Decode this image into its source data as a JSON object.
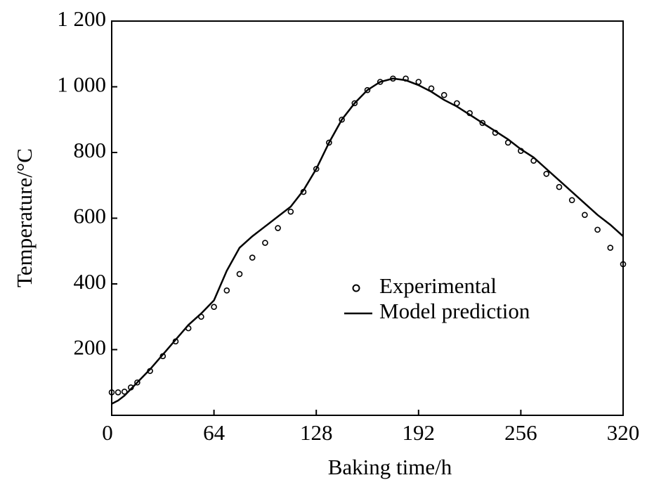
{
  "chart_data": {
    "type": "line",
    "x_label": "Baking time/h",
    "y_label": "Temperature/°C",
    "x": [
      0,
      4,
      8,
      12,
      16,
      24,
      32,
      40,
      48,
      56,
      64,
      72,
      80,
      88,
      96,
      104,
      112,
      120,
      128,
      136,
      144,
      152,
      160,
      168,
      176,
      184,
      192,
      200,
      208,
      216,
      224,
      232,
      240,
      248,
      256,
      264,
      272,
      280,
      288,
      296,
      304,
      312,
      320
    ],
    "series": [
      {
        "name": "Experimental",
        "color": "#000000",
        "mode": "markers",
        "values": [
          70,
          70,
          72,
          85,
          100,
          135,
          180,
          225,
          265,
          300,
          330,
          380,
          430,
          480,
          525,
          570,
          620,
          680,
          750,
          830,
          900,
          950,
          990,
          1015,
          1025,
          1025,
          1015,
          995,
          975,
          950,
          920,
          890,
          860,
          830,
          805,
          775,
          735,
          695,
          655,
          610,
          565,
          510,
          460
        ]
      },
      {
        "name": "Model prediction",
        "color": "#000000",
        "mode": "line",
        "values": [
          35,
          45,
          60,
          80,
          100,
          140,
          185,
          230,
          275,
          310,
          350,
          440,
          510,
          545,
          575,
          605,
          635,
          685,
          750,
          830,
          900,
          950,
          990,
          1015,
          1025,
          1020,
          1005,
          985,
          960,
          940,
          915,
          890,
          865,
          840,
          810,
          785,
          750,
          715,
          680,
          645,
          610,
          580,
          545
        ]
      }
    ],
    "xlim": [
      0,
      320
    ],
    "xticks": [
      0,
      64,
      128,
      192,
      256,
      320
    ],
    "ylim": [
      0,
      1200
    ],
    "yticks": [
      200,
      400,
      600,
      800,
      {
        "value": 1000,
        "label": "1 000"
      },
      {
        "value": 1200,
        "label": "1 200"
      }
    ],
    "grid": false,
    "legend": "right"
  }
}
